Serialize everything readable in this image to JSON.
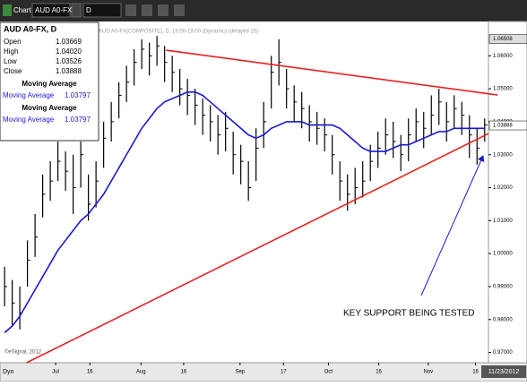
{
  "toolbar": {
    "title": "Chart",
    "symbol": "AUD A0-FX",
    "interval": "D"
  },
  "legend": {
    "symbol": "AUD A0-FX, D",
    "rows": [
      [
        "Open",
        "1.03669"
      ],
      [
        "High",
        "1.04020"
      ],
      [
        "Low",
        "1.03526"
      ],
      [
        "Close",
        "1.03888"
      ]
    ],
    "studies": [
      {
        "title": "Moving Average",
        "label": "Moving Average",
        "value": "1.03797"
      },
      {
        "title": "Moving Average",
        "label": "Moving Average",
        "value": "1.03797"
      }
    ]
  },
  "footer": {
    "mode": "Dyn",
    "copyright": "©eSignal, 2012",
    "date": "11/23/2012"
  },
  "chart_data": {
    "type": "ohlc",
    "subtitle": "AUD A0-FX(COMPOSITE), D, 19:00-19:00 (Dynamic) (delayed 15)",
    "annotation": "KEY SUPPORT  BEING TESTED",
    "categories": [
      null,
      null,
      null,
      null,
      null,
      null,
      null,
      null,
      null,
      null,
      null,
      null,
      null,
      null,
      null,
      null,
      null,
      null,
      null,
      null,
      null,
      null,
      null,
      null,
      null,
      null,
      null,
      null,
      null,
      null,
      null,
      null,
      null,
      null,
      null,
      null,
      null,
      null,
      null,
      null,
      null,
      null,
      null,
      null,
      null,
      null,
      null,
      null,
      null,
      null,
      null,
      null,
      null,
      null,
      null,
      null,
      null,
      null,
      null,
      null,
      null,
      null,
      null,
      null
    ],
    "high": [
      0.996,
      0.992,
      0.99,
      1.004,
      1.012,
      1.024,
      1.028,
      1.034,
      1.031,
      1.03,
      1.034,
      1.024,
      1.028,
      1.04,
      1.046,
      1.052,
      1.057,
      1.062,
      1.065,
      1.064,
      1.066,
      1.063,
      1.06,
      1.056,
      1.053,
      1.05,
      1.047,
      1.045,
      1.042,
      1.043,
      1.037,
      1.033,
      1.028,
      1.038,
      1.046,
      1.06,
      1.065,
      1.056,
      1.051,
      1.049,
      1.045,
      1.043,
      1.041,
      1.036,
      1.028,
      1.024,
      1.026,
      1.028,
      1.033,
      1.037,
      1.041,
      1.04,
      1.036,
      1.041,
      1.044,
      1.043,
      1.048,
      1.05,
      1.046,
      1.048,
      1.046,
      1.042,
      1.038,
      1.041
    ],
    "low": [
      0.984,
      0.978,
      0.977,
      0.99,
      0.999,
      1.011,
      1.016,
      1.022,
      1.019,
      1.012,
      1.02,
      1.01,
      1.014,
      1.026,
      1.034,
      1.041,
      1.046,
      1.051,
      1.056,
      1.054,
      1.057,
      1.052,
      1.049,
      1.045,
      1.042,
      1.039,
      1.036,
      1.034,
      1.03,
      1.031,
      1.024,
      1.021,
      1.016,
      1.022,
      1.032,
      1.044,
      1.051,
      1.044,
      1.04,
      1.038,
      1.034,
      1.033,
      1.031,
      1.024,
      1.016,
      1.013,
      1.015,
      1.017,
      1.022,
      1.026,
      1.03,
      1.029,
      1.025,
      1.028,
      1.034,
      1.032,
      1.036,
      1.039,
      1.034,
      1.038,
      1.036,
      1.029,
      1.027,
      1.034
    ],
    "close": [
      0.99,
      0.985,
      0.982,
      0.998,
      1.005,
      1.018,
      1.022,
      1.028,
      1.025,
      1.02,
      1.03,
      1.015,
      1.022,
      1.035,
      1.04,
      1.048,
      1.052,
      1.058,
      1.062,
      1.06,
      1.063,
      1.058,
      1.055,
      1.05,
      1.048,
      1.045,
      1.042,
      1.04,
      1.036,
      1.038,
      1.03,
      1.028,
      1.02,
      1.032,
      1.04,
      1.055,
      1.058,
      1.05,
      1.046,
      1.044,
      1.04,
      1.038,
      1.036,
      1.03,
      1.022,
      1.018,
      1.02,
      1.022,
      1.028,
      1.032,
      1.036,
      1.034,
      1.03,
      1.036,
      1.04,
      1.038,
      1.042,
      1.046,
      1.04,
      1.044,
      1.042,
      1.036,
      1.032,
      1.039
    ],
    "bar_color": "#000000",
    "moving_average": {
      "color": "#1a1ad0",
      "values": [
        0.976,
        0.978,
        0.981,
        0.985,
        0.989,
        0.993,
        0.997,
        1.001,
        1.004,
        1.007,
        1.01,
        1.012,
        1.015,
        1.018,
        1.022,
        1.026,
        1.03,
        1.034,
        1.038,
        1.041,
        1.044,
        1.046,
        1.047,
        1.048,
        1.049,
        1.049,
        1.048,
        1.046,
        1.044,
        1.042,
        1.04,
        1.038,
        1.036,
        1.035,
        1.036,
        1.038,
        1.039,
        1.04,
        1.04,
        1.04,
        1.039,
        1.039,
        1.039,
        1.039,
        1.038,
        1.036,
        1.034,
        1.032,
        1.031,
        1.031,
        1.031,
        1.032,
        1.033,
        1.033,
        1.034,
        1.035,
        1.036,
        1.037,
        1.037,
        1.038,
        1.038,
        1.038,
        1.038,
        1.038
      ]
    },
    "trendlines": [
      {
        "color": "#e82020",
        "x": [
          21.2,
          64.7
        ],
        "y": [
          1.0617,
          1.0481
        ]
      },
      {
        "color": "#e82020",
        "x": [
          2.9,
          63.5
        ],
        "y": [
          0.9669,
          1.0364
        ]
      }
    ],
    "xlim": [
      -0.6,
      63.5
    ],
    "ylim": [
      0.9669,
      1.0704
    ],
    "xticks": [
      {
        "value": 6.7,
        "label": "Jul"
      },
      {
        "value": 11.2,
        "label": "16"
      },
      {
        "value": 17.9,
        "label": "Aug"
      },
      {
        "value": 23.5,
        "label": "16"
      },
      {
        "value": 30.9,
        "label": "Sep"
      },
      {
        "value": 36.6,
        "label": "17"
      },
      {
        "value": 42.5,
        "label": "Oct"
      },
      {
        "value": 49.1,
        "label": "16"
      },
      {
        "value": 55.6,
        "label": "Nov"
      },
      {
        "value": 61.8,
        "label": "16"
      }
    ],
    "yticks": [
      {
        "value": 1.06,
        "label": "1.06000"
      },
      {
        "value": 1.05,
        "label": "1.05000"
      },
      {
        "value": 1.04,
        "label": "1.04000"
      },
      {
        "value": 1.03,
        "label": "1.03000"
      },
      {
        "value": 1.02,
        "label": "1.02000"
      },
      {
        "value": 1.01,
        "label": "1.01000"
      },
      {
        "value": 1.0,
        "label": "1.00000"
      },
      {
        "value": 0.99,
        "label": "0.99000"
      },
      {
        "value": 0.98,
        "label": "0.98000"
      },
      {
        "value": 0.97,
        "label": "0.97000"
      }
    ],
    "price_markers": [
      {
        "value": 1.06508,
        "label": "1.06508"
      },
      {
        "value": 1.03888,
        "label": "1.03888"
      }
    ]
  }
}
